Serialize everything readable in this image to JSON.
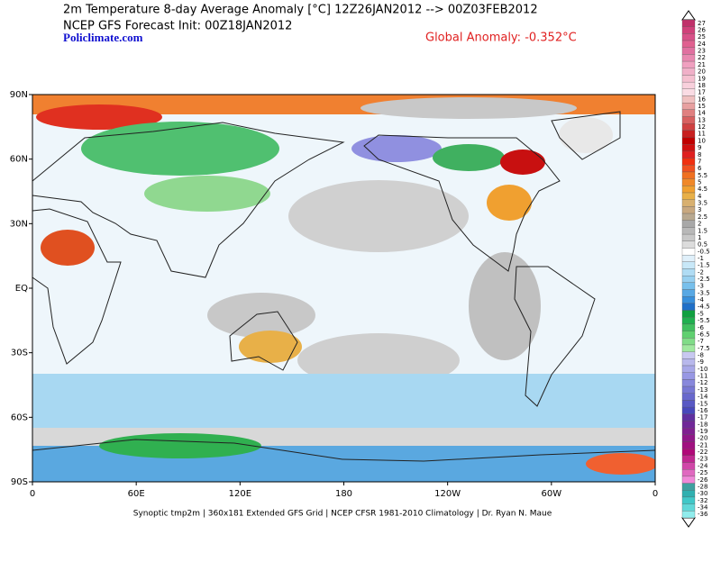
{
  "header": {
    "title": "2m Temperature 8-day Average Anomaly [°C] 12Z26JAN2012 --> 00Z03FEB2012",
    "subtitle": "NCEP GFS Forecast Init: 00Z18JAN2012",
    "site": "Policlimate.com",
    "global_anomaly": "Global Anomaly: -0.352°C"
  },
  "map": {
    "lat_labels": [
      "90N",
      "60N",
      "30N",
      "EQ",
      "30S",
      "60S",
      "90S"
    ],
    "lon_labels": [
      "0",
      "60E",
      "120E",
      "180",
      "120W",
      "60W",
      "0"
    ],
    "footer": "Synoptic tmp2m | 360x181 Extended GFS Grid | NCEP CFSR 1981-2010 Climatology | Dr. Ryan N. Maue"
  },
  "colorbar": {
    "labels": [
      "27",
      "26",
      "25",
      "24",
      "23",
      "22",
      "21",
      "20",
      "19",
      "18",
      "17",
      "16",
      "15",
      "14",
      "13",
      "12",
      "11",
      "10",
      "9",
      "8",
      "7",
      "6",
      "5.5",
      "5",
      "4.5",
      "4",
      "3.5",
      "3",
      "2.5",
      "2",
      "1.5",
      "1",
      "0.5",
      "-0.5",
      "-1",
      "-1.5",
      "-2",
      "-2.5",
      "-3",
      "-3.5",
      "-4",
      "-4.5",
      "-5",
      "-5.5",
      "-6",
      "-6.5",
      "-7",
      "-7.5",
      "-8",
      "-9",
      "-10",
      "-11",
      "-12",
      "-13",
      "-14",
      "-15",
      "-16",
      "-17",
      "-18",
      "-19",
      "-20",
      "-21",
      "-22",
      "-23",
      "-24",
      "-25",
      "-26",
      "-28",
      "-30",
      "-32",
      "-34",
      "-36"
    ],
    "colors": [
      "#c0306a",
      "#d0407a",
      "#d85088",
      "#e06090",
      "#e070a0",
      "#e888b0",
      "#f0a0c0",
      "#f0b0c8",
      "#f5c0d0",
      "#f8d0dc",
      "#fadce4",
      "#f0c0c0",
      "#e8a0a0",
      "#e08080",
      "#d86060",
      "#d04040",
      "#c82020",
      "#c00000",
      "#d01010",
      "#e02020",
      "#f03010",
      "#f05020",
      "#f07020",
      "#f08828",
      "#f0a030",
      "#e8b048",
      "#d8b070",
      "#c8a880",
      "#b8a890",
      "#a8a8a8",
      "#b8b8b8",
      "#c8c8c8",
      "#dcdcdc",
      "#ffffff",
      "#e0f0fa",
      "#c8e8f8",
      "#b0dcf4",
      "#98d0f0",
      "#78c0ec",
      "#58a8e4",
      "#3890dc",
      "#2070c8",
      "#10a040",
      "#20b050",
      "#40c060",
      "#60d070",
      "#80dc88",
      "#a0e8a0",
      "#c8c8f0",
      "#b8b8ec",
      "#a8a8e8",
      "#9898e4",
      "#8888dc",
      "#7878d4",
      "#6868cc",
      "#5858c4",
      "#4848bc",
      "#6030a0",
      "#702898",
      "#802090",
      "#901888",
      "#a01080",
      "#b00878",
      "#c02890",
      "#d048a8",
      "#e068c0",
      "#f088d8",
      "#40a0a0",
      "#30b0b0",
      "#40c8c8",
      "#60d8d8",
      "#90ecec"
    ]
  }
}
